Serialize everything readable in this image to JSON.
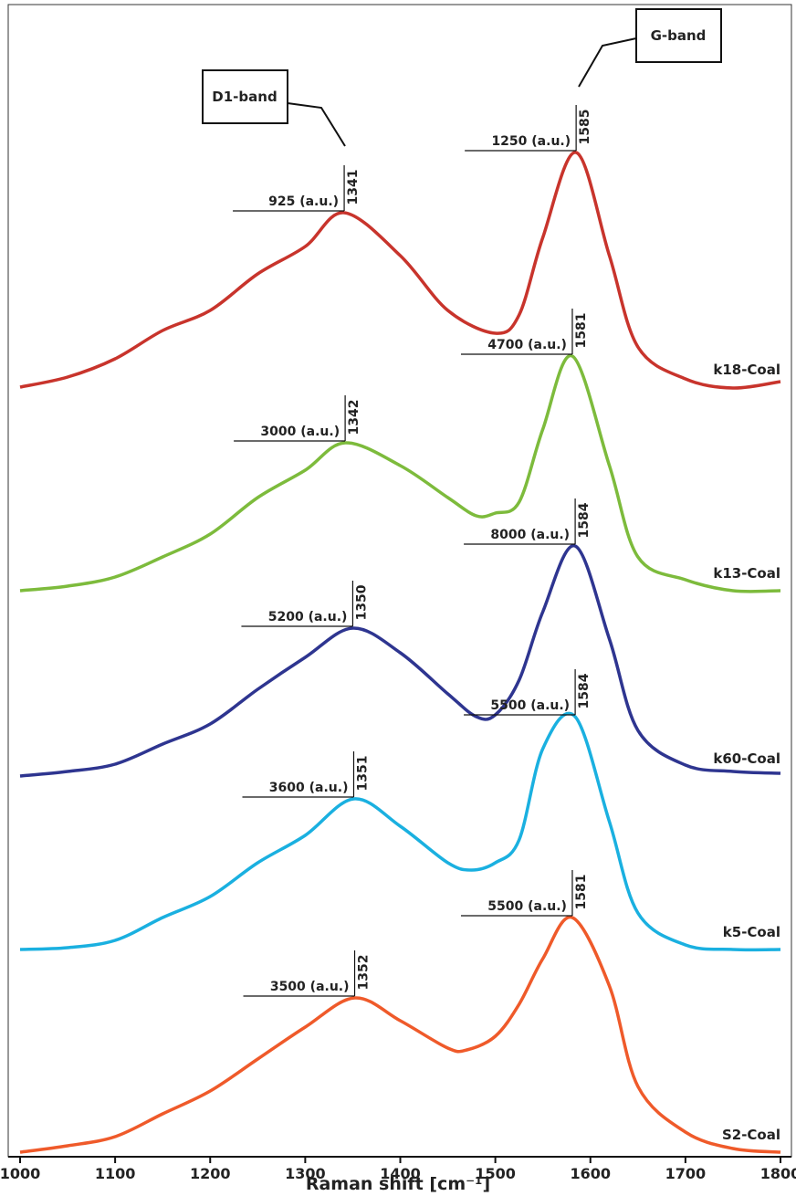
{
  "chart_data": {
    "type": "line",
    "xlabel": "Raman shift [cm⁻¹]",
    "xlim": [
      1000,
      1800
    ],
    "xticks": [
      1000,
      1100,
      1200,
      1300,
      1400,
      1500,
      1600,
      1700,
      1800
    ],
    "band_labels": [
      "D1-band",
      "G-band"
    ],
    "series": [
      {
        "name": "k18-Coal",
        "color": "#c8342c",
        "x": [
          1000,
          1050,
          1100,
          1150,
          1200,
          1250,
          1300,
          1341,
          1400,
          1450,
          1500,
          1525,
          1550,
          1585,
          1620,
          1650,
          1700,
          1750,
          1800
        ],
        "values": [
          0,
          0.11,
          0.31,
          0.62,
          0.84,
          1.24,
          1.54,
          1.91,
          1.44,
          0.84,
          0.59,
          0.79,
          1.64,
          2.57,
          1.44,
          0.44,
          0.09,
          -0.01,
          0.06
        ],
        "annotations": [
          {
            "x": 1341,
            "label": "925 (a.u.)"
          },
          {
            "x": 1585,
            "label": "1250 (a.u.)"
          }
        ]
      },
      {
        "name": "k13-Coal",
        "color": "#7dbb3c",
        "x": [
          1000,
          1050,
          1100,
          1150,
          1200,
          1250,
          1300,
          1342,
          1400,
          1450,
          1480,
          1500,
          1525,
          1550,
          1581,
          1620,
          1650,
          1700,
          1750,
          1800
        ],
        "values": [
          0,
          0.05,
          0.15,
          0.37,
          0.62,
          1.02,
          1.32,
          1.62,
          1.37,
          1.02,
          0.82,
          0.85,
          0.97,
          1.77,
          2.57,
          1.37,
          0.37,
          0.12,
          0,
          0
        ],
        "annotations": [
          {
            "x": 1342,
            "label": "3000 (a.u.)"
          },
          {
            "x": 1581,
            "label": "4700 (a.u.)"
          }
        ]
      },
      {
        "name": "k60-Coal",
        "color": "#2e3590",
        "x": [
          1000,
          1050,
          1100,
          1150,
          1200,
          1250,
          1300,
          1350,
          1400,
          1450,
          1480,
          1500,
          1525,
          1550,
          1584,
          1620,
          1650,
          1700,
          1750,
          1800
        ],
        "values": [
          0,
          0.05,
          0.13,
          0.35,
          0.57,
          0.95,
          1.3,
          1.62,
          1.35,
          0.9,
          0.65,
          0.67,
          1.05,
          1.8,
          2.52,
          1.5,
          0.5,
          0.12,
          0.05,
          0.03
        ],
        "annotations": [
          {
            "x": 1350,
            "label": "5200 (a.u.)"
          },
          {
            "x": 1584,
            "label": "8000 (a.u.)"
          }
        ]
      },
      {
        "name": "k5-Coal",
        "color": "#1ab0e0",
        "x": [
          1000,
          1050,
          1100,
          1150,
          1200,
          1250,
          1300,
          1351,
          1400,
          1450,
          1475,
          1500,
          1525,
          1550,
          1584,
          1620,
          1650,
          1700,
          1750,
          1800
        ],
        "values": [
          0,
          0.02,
          0.1,
          0.35,
          0.58,
          0.95,
          1.25,
          1.65,
          1.35,
          0.95,
          0.87,
          0.95,
          1.2,
          2.2,
          2.55,
          1.4,
          0.4,
          0.05,
          0,
          0
        ],
        "annotations": [
          {
            "x": 1351,
            "label": "3600 (a.u.)"
          },
          {
            "x": 1584,
            "label": "5500 (a.u.)"
          }
        ]
      },
      {
        "name": "S2-Coal",
        "color": "#ef5a2a",
        "x": [
          1000,
          1050,
          1100,
          1150,
          1200,
          1250,
          1300,
          1352,
          1400,
          1450,
          1470,
          1500,
          1525,
          1550,
          1581,
          1620,
          1650,
          1700,
          1750,
          1800
        ],
        "values": [
          0,
          0.07,
          0.17,
          0.42,
          0.67,
          1.02,
          1.37,
          1.69,
          1.44,
          1.14,
          1.12,
          1.27,
          1.62,
          2.12,
          2.57,
          1.82,
          0.72,
          0.22,
          0.04,
          0
        ],
        "annotations": [
          {
            "x": 1352,
            "label": "3500 (a.u.)"
          },
          {
            "x": 1581,
            "label": "5500 (a.u.)"
          }
        ]
      }
    ]
  }
}
